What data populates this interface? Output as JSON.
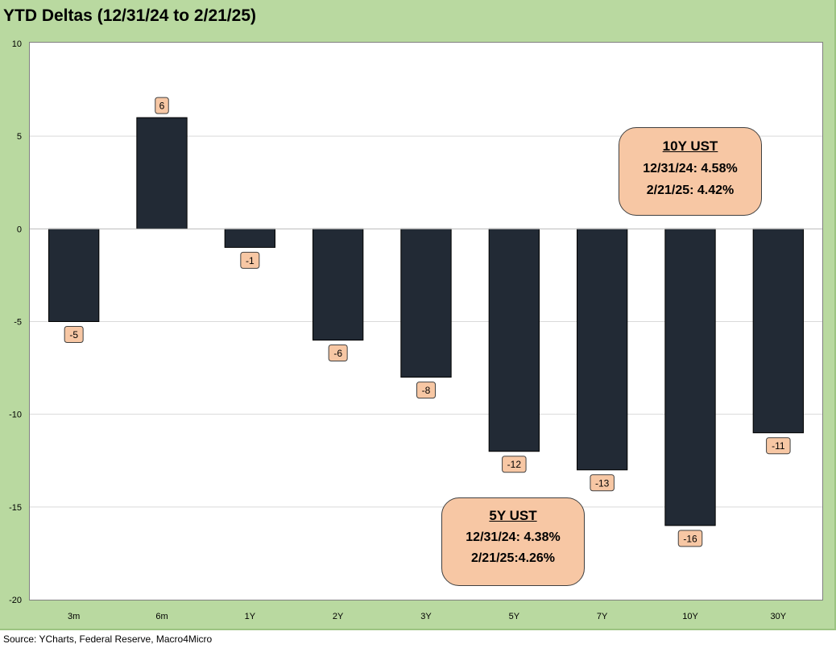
{
  "title": "YTD Deltas (12/31/24 to 2/21/25)",
  "source": "Source: YCharts, Federal Reserve, Macro4Micro",
  "colors": {
    "bar": "#222a35",
    "label_fill": "#f7c7a4",
    "frame": "#b9d9a0",
    "plot_bg": "#ffffff",
    "gridline": "#d9d9d9"
  },
  "chart_data": {
    "type": "bar",
    "categories": [
      "3m",
      "6m",
      "1Y",
      "2Y",
      "3Y",
      "5Y",
      "7Y",
      "10Y",
      "30Y"
    ],
    "values": [
      -5,
      6,
      -1,
      -6,
      -8,
      -12,
      -13,
      -16,
      -11
    ],
    "ylim": [
      -20,
      10
    ],
    "yticks": [
      10,
      5,
      0,
      -5,
      -10,
      -15,
      -20
    ],
    "grid": true,
    "data_labels": true
  },
  "annotations": {
    "ten_year": {
      "title": "10Y UST",
      "line1": "12/31/24: 4.58%",
      "line2": "2/21/25: 4.42%"
    },
    "five_year": {
      "title": "5Y UST",
      "line1": "12/31/24: 4.38%",
      "line2": "2/21/25:4.26%"
    }
  }
}
